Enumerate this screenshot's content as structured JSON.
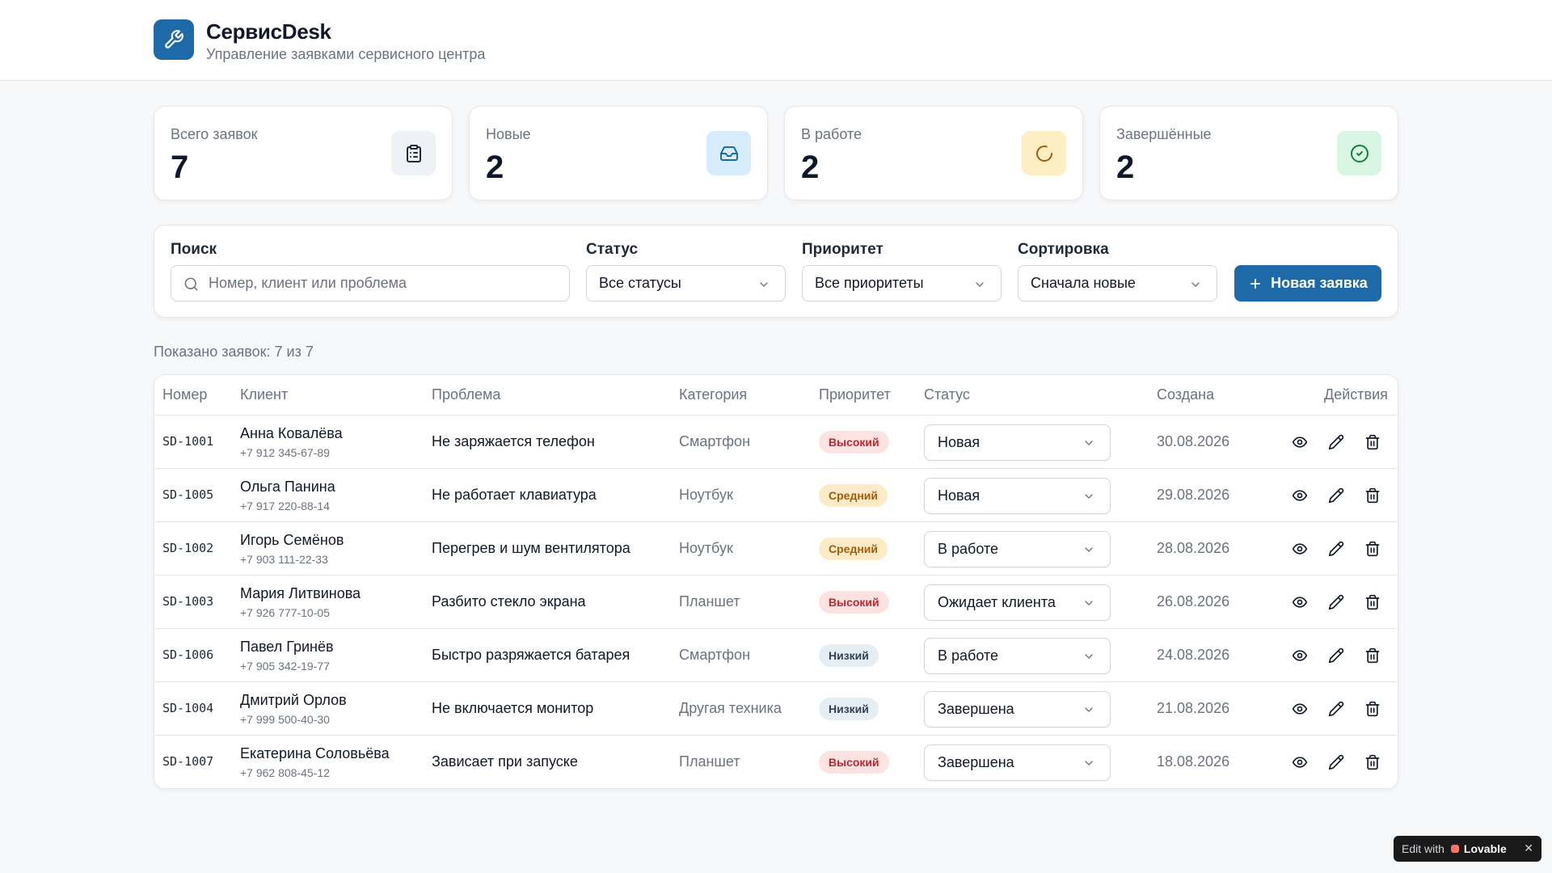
{
  "app": {
    "title": "СервисDesk",
    "subtitle": "Управление заявками сервисного центра",
    "logo_icon": "wrench-icon"
  },
  "stats": [
    {
      "label": "Всего заявок",
      "value": "7",
      "icon": "clipboard-icon",
      "color": "#eef1f5"
    },
    {
      "label": "Новые",
      "value": "2",
      "icon": "inbox-icon",
      "color": "#d6ecfb"
    },
    {
      "label": "В работе",
      "value": "2",
      "icon": "loader-icon",
      "color": "#fdeec4"
    },
    {
      "label": "Завершённые",
      "value": "2",
      "icon": "check-circle-icon",
      "color": "#d8f6e3"
    }
  ],
  "filters": {
    "search_label": "Поиск",
    "search_placeholder": "Номер, клиент или проблема",
    "status_label": "Статус",
    "status_value": "Все статусы",
    "priority_label": "Приоритет",
    "priority_value": "Все приоритеты",
    "sort_label": "Сортировка",
    "sort_value": "Сначала новые",
    "new_button": "Новая заявка"
  },
  "shown_text": "Показано заявок: 7 из 7",
  "table": {
    "headers": [
      "Номер",
      "Клиент",
      "Проблема",
      "Категория",
      "Приоритет",
      "Статус",
      "Создана",
      "Действия"
    ],
    "rows": [
      {
        "id": "SD-1001",
        "name": "Анна Ковалёва",
        "phone": "+7 912 345-67-89",
        "problem": "Не заряжается телефон",
        "category": "Смартфон",
        "priority": "Высокий",
        "status": "Новая",
        "date": "30.08.2026"
      },
      {
        "id": "SD-1005",
        "name": "Ольга Панина",
        "phone": "+7 917 220-88-14",
        "problem": "Не работает клавиатура",
        "category": "Ноутбук",
        "priority": "Средний",
        "status": "Новая",
        "date": "29.08.2026"
      },
      {
        "id": "SD-1002",
        "name": "Игорь Семёнов",
        "phone": "+7 903 111-22-33",
        "problem": "Перегрев и шум вентилятора",
        "category": "Ноутбук",
        "priority": "Средний",
        "status": "В работе",
        "date": "28.08.2026"
      },
      {
        "id": "SD-1003",
        "name": "Мария Литвинова",
        "phone": "+7 926 777-10-05",
        "problem": "Разбито стекло экрана",
        "category": "Планшет",
        "priority": "Высокий",
        "status": "Ожидает клиента",
        "date": "26.08.2026"
      },
      {
        "id": "SD-1006",
        "name": "Павел Гринёв",
        "phone": "+7 905 342-19-77",
        "problem": "Быстро разряжается батарея",
        "category": "Смартфон",
        "priority": "Низкий",
        "status": "В работе",
        "date": "24.08.2026"
      },
      {
        "id": "SD-1004",
        "name": "Дмитрий Орлов",
        "phone": "+7 999 500-40-30",
        "problem": "Не включается монитор",
        "category": "Другая техника",
        "priority": "Низкий",
        "status": "Завершена",
        "date": "21.08.2026"
      },
      {
        "id": "SD-1007",
        "name": "Екатерина Соловьёва",
        "phone": "+7 962 808-45-12",
        "problem": "Зависает при запуске",
        "category": "Планшет",
        "priority": "Высокий",
        "status": "Завершена",
        "date": "18.08.2026"
      }
    ]
  },
  "badge": {
    "text": "Edit with",
    "brand": "Lovable"
  }
}
